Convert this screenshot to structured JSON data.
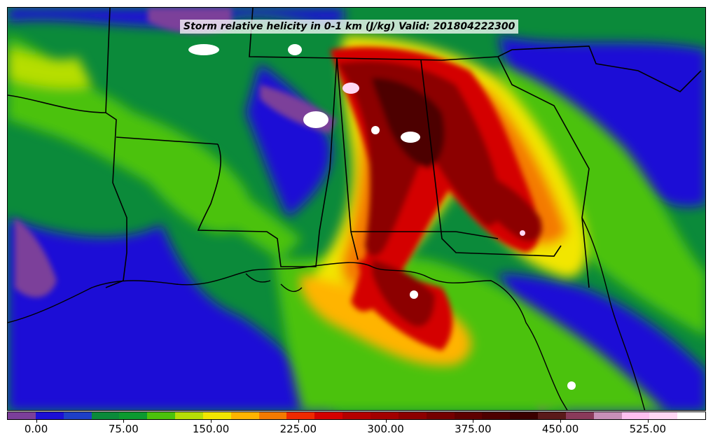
{
  "title": "Storm relative helicity in 0-1 km (J/kg) Valid: 201804222300",
  "colorbar": {
    "colors": [
      "#7b3f9a",
      "#1c10d6",
      "#1e3fc7",
      "#0b8a3a",
      "#0c9a30",
      "#4cc20c",
      "#b6de06",
      "#f2e600",
      "#ffb400",
      "#f47a00",
      "#ee2a00",
      "#d40000",
      "#b40000",
      "#a30000",
      "#8c0000",
      "#740000",
      "#5e0000",
      "#4d0000",
      "#3a0000",
      "#5a1a1a",
      "#8a3a5a",
      "#c890b8",
      "#ffc0f0",
      "#ffd8f4",
      "#ffffff"
    ],
    "ticks": [
      {
        "label": "0.00"
      },
      {
        "label": "75.00"
      },
      {
        "label": "150.00"
      },
      {
        "label": "225.00"
      },
      {
        "label": "300.00"
      },
      {
        "label": "375.00"
      },
      {
        "label": "450.00"
      },
      {
        "label": "525.00"
      }
    ]
  },
  "legend_range": {
    "min": -25,
    "max": 575,
    "step": 25
  }
}
